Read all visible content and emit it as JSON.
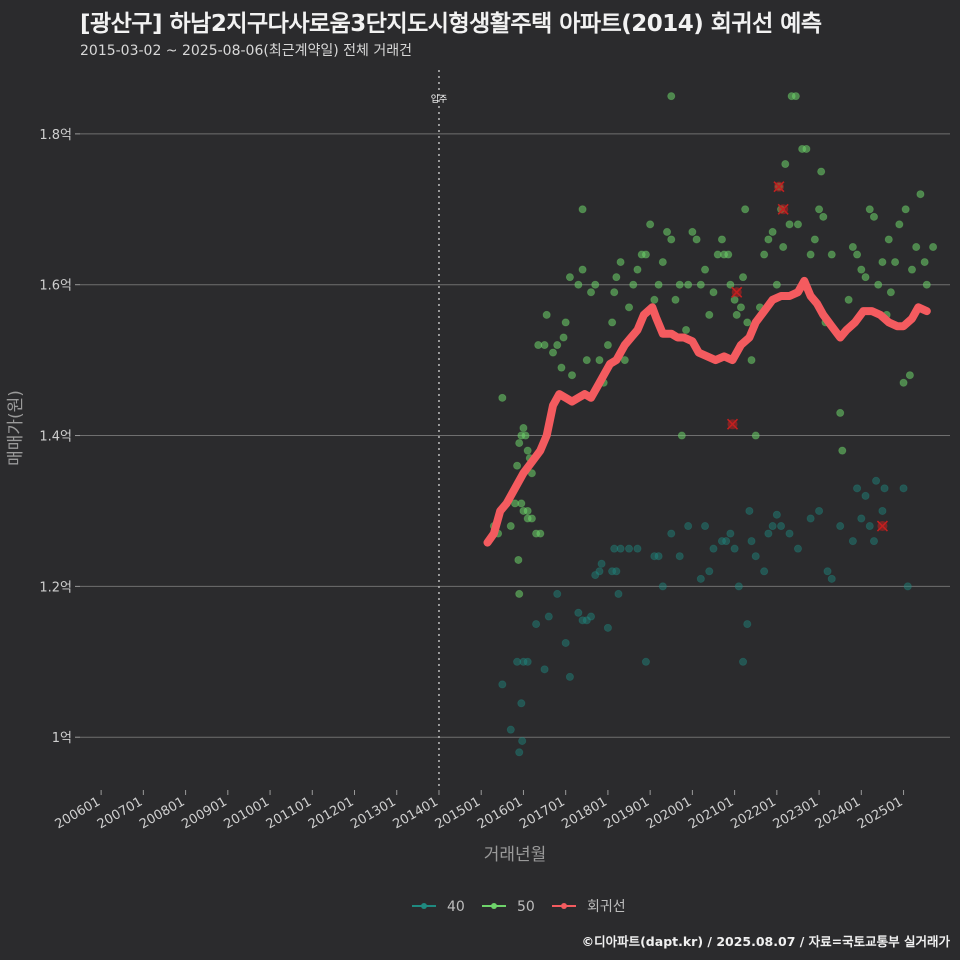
{
  "header": {
    "title": "[광산구] 하남2지구다사로움3단지도시형생활주택 아파트(2014) 회귀선 예측",
    "subtitle": "2015-03-02 ~ 2025-08-06(최근계약일) 전체 거래건"
  },
  "credit": "©디아파트(dapt.kr) / 2025.08.07 / 자료=국토교통부 실거래가",
  "chart_data": {
    "type": "scatter",
    "title": "[광산구] 하남2지구다사로움3단지도시형생활주택 아파트(2014) 회귀선 예측",
    "xlabel": "거래년월",
    "ylabel": "매매가(원)",
    "xlim": [
      2005.5,
      2026.1
    ],
    "ylim": [
      0.93,
      1.89
    ],
    "x_ticks": [
      {
        "v": 2006,
        "label": "200601"
      },
      {
        "v": 2007,
        "label": "200701"
      },
      {
        "v": 2008,
        "label": "200801"
      },
      {
        "v": 2009,
        "label": "200901"
      },
      {
        "v": 2010,
        "label": "201001"
      },
      {
        "v": 2011,
        "label": "201101"
      },
      {
        "v": 2012,
        "label": "201201"
      },
      {
        "v": 2013,
        "label": "201301"
      },
      {
        "v": 2014,
        "label": "201401"
      },
      {
        "v": 2015,
        "label": "201501"
      },
      {
        "v": 2016,
        "label": "201601"
      },
      {
        "v": 2017,
        "label": "201701"
      },
      {
        "v": 2018,
        "label": "201801"
      },
      {
        "v": 2019,
        "label": "201901"
      },
      {
        "v": 2020,
        "label": "202001"
      },
      {
        "v": 2021,
        "label": "202101"
      },
      {
        "v": 2022,
        "label": "202201"
      },
      {
        "v": 2023,
        "label": "202301"
      },
      {
        "v": 2024,
        "label": "202401"
      },
      {
        "v": 2025,
        "label": "202501"
      }
    ],
    "y_ticks": [
      {
        "v": 1.0,
        "label": "1억"
      },
      {
        "v": 1.2,
        "label": "1.2억"
      },
      {
        "v": 1.4,
        "label": "1.4억"
      },
      {
        "v": 1.6,
        "label": "1.6억"
      },
      {
        "v": 1.8,
        "label": "1.8억"
      }
    ],
    "annotation": {
      "x": 2014.0,
      "label": "입주"
    },
    "colors": {
      "s40": "#1f8a80",
      "s50": "#6ed36a",
      "reg": "#f45b5f",
      "cancel": "#c21f1f"
    },
    "series": [
      {
        "name": "40",
        "points": [
          [
            2015.5,
            1.07
          ],
          [
            2015.7,
            1.01
          ],
          [
            2015.9,
            0.98
          ],
          [
            2016.0,
            1.1
          ],
          [
            2015.85,
            1.1
          ],
          [
            2015.95,
            1.045
          ],
          [
            2015.97,
            0.995
          ],
          [
            2016.1,
            1.1
          ],
          [
            2016.3,
            1.15
          ],
          [
            2016.5,
            1.09
          ],
          [
            2016.6,
            1.16
          ],
          [
            2016.8,
            1.19
          ],
          [
            2017.0,
            1.125
          ],
          [
            2017.1,
            1.08
          ],
          [
            2017.3,
            1.165
          ],
          [
            2017.4,
            1.155
          ],
          [
            2017.5,
            1.155
          ],
          [
            2017.6,
            1.16
          ],
          [
            2017.7,
            1.215
          ],
          [
            2017.8,
            1.22
          ],
          [
            2017.85,
            1.23
          ],
          [
            2018.0,
            1.145
          ],
          [
            2018.1,
            1.22
          ],
          [
            2018.15,
            1.25
          ],
          [
            2018.2,
            1.22
          ],
          [
            2018.25,
            1.19
          ],
          [
            2018.3,
            1.25
          ],
          [
            2018.5,
            1.25
          ],
          [
            2018.7,
            1.25
          ],
          [
            2018.9,
            1.1
          ],
          [
            2019.1,
            1.24
          ],
          [
            2019.3,
            1.2
          ],
          [
            2019.5,
            1.27
          ],
          [
            2019.7,
            1.24
          ],
          [
            2019.9,
            1.28
          ],
          [
            2019.2,
            1.24
          ],
          [
            2020.2,
            1.21
          ],
          [
            2020.3,
            1.28
          ],
          [
            2020.4,
            1.22
          ],
          [
            2020.5,
            1.25
          ],
          [
            2020.7,
            1.26
          ],
          [
            2020.8,
            1.26
          ],
          [
            2020.9,
            1.27
          ],
          [
            2021.0,
            1.25
          ],
          [
            2021.1,
            1.2
          ],
          [
            2021.2,
            1.1
          ],
          [
            2021.3,
            1.15
          ],
          [
            2021.4,
            1.26
          ],
          [
            2021.35,
            1.3
          ],
          [
            2021.5,
            1.24
          ],
          [
            2021.7,
            1.22
          ],
          [
            2021.8,
            1.27
          ],
          [
            2021.9,
            1.28
          ],
          [
            2022.0,
            1.295
          ],
          [
            2022.1,
            1.28
          ],
          [
            2022.3,
            1.27
          ],
          [
            2022.5,
            1.25
          ],
          [
            2022.8,
            1.29
          ],
          [
            2023.0,
            1.3
          ],
          [
            2023.2,
            1.22
          ],
          [
            2023.3,
            1.21
          ],
          [
            2023.5,
            1.28
          ],
          [
            2023.8,
            1.26
          ],
          [
            2023.9,
            1.33
          ],
          [
            2024.0,
            1.29
          ],
          [
            2024.1,
            1.32
          ],
          [
            2024.2,
            1.28
          ],
          [
            2024.3,
            1.26
          ],
          [
            2024.35,
            1.34
          ],
          [
            2024.5,
            1.3
          ],
          [
            2024.55,
            1.33
          ],
          [
            2025.0,
            1.33
          ],
          [
            2025.1,
            1.2
          ]
        ]
      },
      {
        "name": "50",
        "points": [
          [
            2015.3,
            1.28
          ],
          [
            2015.4,
            1.27
          ],
          [
            2015.5,
            1.45
          ],
          [
            2015.7,
            1.28
          ],
          [
            2015.8,
            1.31
          ],
          [
            2015.85,
            1.36
          ],
          [
            2015.9,
            1.39
          ],
          [
            2015.95,
            1.4
          ],
          [
            2016.0,
            1.41
          ],
          [
            2016.05,
            1.4
          ],
          [
            2016.1,
            1.38
          ],
          [
            2016.15,
            1.37
          ],
          [
            2016.2,
            1.29
          ],
          [
            2015.9,
            1.19
          ],
          [
            2015.88,
            1.235
          ],
          [
            2016.0,
            1.3
          ],
          [
            2016.1,
            1.29
          ],
          [
            2016.3,
            1.27
          ],
          [
            2016.35,
            1.52
          ],
          [
            2016.4,
            1.27
          ],
          [
            2016.5,
            1.52
          ],
          [
            2016.55,
            1.56
          ],
          [
            2016.7,
            1.51
          ],
          [
            2016.8,
            1.52
          ],
          [
            2016.9,
            1.49
          ],
          [
            2016.95,
            1.53
          ],
          [
            2017.0,
            1.55
          ],
          [
            2017.1,
            1.61
          ],
          [
            2017.15,
            1.48
          ],
          [
            2017.3,
            1.6
          ],
          [
            2017.4,
            1.62
          ],
          [
            2017.5,
            1.5
          ],
          [
            2017.6,
            1.59
          ],
          [
            2017.7,
            1.6
          ],
          [
            2017.8,
            1.5
          ],
          [
            2017.9,
            1.47
          ],
          [
            2018.0,
            1.52
          ],
          [
            2018.1,
            1.55
          ],
          [
            2018.15,
            1.59
          ],
          [
            2018.2,
            1.61
          ],
          [
            2018.3,
            1.63
          ],
          [
            2018.4,
            1.5
          ],
          [
            2018.5,
            1.57
          ],
          [
            2018.6,
            1.6
          ],
          [
            2018.7,
            1.62
          ],
          [
            2018.8,
            1.64
          ],
          [
            2018.9,
            1.64
          ],
          [
            2019.0,
            1.68
          ],
          [
            2019.1,
            1.58
          ],
          [
            2019.2,
            1.6
          ],
          [
            2019.3,
            1.63
          ],
          [
            2019.4,
            1.67
          ],
          [
            2019.5,
            1.66
          ],
          [
            2019.6,
            1.58
          ],
          [
            2019.7,
            1.6
          ],
          [
            2019.75,
            1.4
          ],
          [
            2019.85,
            1.54
          ],
          [
            2019.9,
            1.6
          ],
          [
            2020.0,
            1.67
          ],
          [
            2020.1,
            1.66
          ],
          [
            2020.2,
            1.6
          ],
          [
            2020.3,
            1.62
          ],
          [
            2020.4,
            1.56
          ],
          [
            2020.5,
            1.59
          ],
          [
            2020.6,
            1.64
          ],
          [
            2020.7,
            1.66
          ],
          [
            2020.75,
            1.64
          ],
          [
            2020.85,
            1.64
          ],
          [
            2020.9,
            1.6
          ],
          [
            2021.0,
            1.58
          ],
          [
            2021.05,
            1.56
          ],
          [
            2021.15,
            1.57
          ],
          [
            2021.2,
            1.61
          ],
          [
            2021.25,
            1.7
          ],
          [
            2021.3,
            1.55
          ],
          [
            2021.4,
            1.5
          ],
          [
            2021.5,
            1.4
          ],
          [
            2021.6,
            1.57
          ],
          [
            2021.7,
            1.64
          ],
          [
            2021.8,
            1.66
          ],
          [
            2021.9,
            1.67
          ],
          [
            2022.0,
            1.6
          ],
          [
            2022.05,
            1.73
          ],
          [
            2022.1,
            1.7
          ],
          [
            2022.15,
            1.65
          ],
          [
            2022.2,
            1.76
          ],
          [
            2022.3,
            1.68
          ],
          [
            2022.35,
            1.85
          ],
          [
            2022.45,
            1.85
          ],
          [
            2022.5,
            1.68
          ],
          [
            2022.6,
            1.78
          ],
          [
            2022.7,
            1.78
          ],
          [
            2022.8,
            1.64
          ],
          [
            2022.9,
            1.66
          ],
          [
            2023.0,
            1.7
          ],
          [
            2023.05,
            1.75
          ],
          [
            2023.1,
            1.69
          ],
          [
            2023.15,
            1.55
          ],
          [
            2023.3,
            1.64
          ],
          [
            2023.5,
            1.43
          ],
          [
            2023.55,
            1.38
          ],
          [
            2023.7,
            1.58
          ],
          [
            2023.8,
            1.65
          ],
          [
            2023.9,
            1.64
          ],
          [
            2024.0,
            1.62
          ],
          [
            2024.1,
            1.61
          ],
          [
            2024.2,
            1.7
          ],
          [
            2024.3,
            1.69
          ],
          [
            2024.4,
            1.6
          ],
          [
            2024.5,
            1.63
          ],
          [
            2024.6,
            1.56
          ],
          [
            2024.65,
            1.66
          ],
          [
            2024.7,
            1.59
          ],
          [
            2024.8,
            1.63
          ],
          [
            2024.9,
            1.68
          ],
          [
            2025.0,
            1.47
          ],
          [
            2025.05,
            1.7
          ],
          [
            2025.15,
            1.48
          ],
          [
            2025.2,
            1.62
          ],
          [
            2025.3,
            1.65
          ],
          [
            2025.4,
            1.72
          ],
          [
            2025.5,
            1.63
          ],
          [
            2025.55,
            1.6
          ],
          [
            2025.7,
            1.65
          ],
          [
            2019.5,
            1.85
          ],
          [
            2017.4,
            1.7
          ],
          [
            2016.2,
            1.35
          ],
          [
            2016.1,
            1.3
          ],
          [
            2015.95,
            1.31
          ]
        ]
      }
    ],
    "cancelled": [
      [
        2020.95,
        1.415
      ],
      [
        2021.05,
        1.59
      ],
      [
        2022.05,
        1.73
      ],
      [
        2022.15,
        1.7
      ],
      [
        2024.5,
        1.28
      ]
    ],
    "regression": {
      "name": "회귀선",
      "points": [
        [
          2015.15,
          1.258
        ],
        [
          2015.3,
          1.27
        ],
        [
          2015.45,
          1.3
        ],
        [
          2015.6,
          1.31
        ],
        [
          2015.8,
          1.33
        ],
        [
          2016.0,
          1.35
        ],
        [
          2016.2,
          1.365
        ],
        [
          2016.4,
          1.38
        ],
        [
          2016.55,
          1.4
        ],
        [
          2016.7,
          1.44
        ],
        [
          2016.85,
          1.455
        ],
        [
          2017.0,
          1.45
        ],
        [
          2017.15,
          1.445
        ],
        [
          2017.3,
          1.45
        ],
        [
          2017.45,
          1.455
        ],
        [
          2017.6,
          1.45
        ],
        [
          2017.75,
          1.465
        ],
        [
          2017.9,
          1.48
        ],
        [
          2018.05,
          1.495
        ],
        [
          2018.2,
          1.5
        ],
        [
          2018.4,
          1.52
        ],
        [
          2018.55,
          1.53
        ],
        [
          2018.7,
          1.54
        ],
        [
          2018.85,
          1.56
        ],
        [
          2018.95,
          1.565
        ],
        [
          2019.05,
          1.57
        ],
        [
          2019.15,
          1.555
        ],
        [
          2019.3,
          1.535
        ],
        [
          2019.5,
          1.535
        ],
        [
          2019.65,
          1.53
        ],
        [
          2019.8,
          1.53
        ],
        [
          2020.0,
          1.525
        ],
        [
          2020.15,
          1.51
        ],
        [
          2020.35,
          1.505
        ],
        [
          2020.55,
          1.5
        ],
        [
          2020.75,
          1.505
        ],
        [
          2020.95,
          1.5
        ],
        [
          2021.15,
          1.52
        ],
        [
          2021.35,
          1.53
        ],
        [
          2021.5,
          1.55
        ],
        [
          2021.7,
          1.565
        ],
        [
          2021.9,
          1.58
        ],
        [
          2022.1,
          1.585
        ],
        [
          2022.3,
          1.585
        ],
        [
          2022.5,
          1.59
        ],
        [
          2022.65,
          1.605
        ],
        [
          2022.8,
          1.585
        ],
        [
          2022.95,
          1.575
        ],
        [
          2023.1,
          1.56
        ],
        [
          2023.3,
          1.545
        ],
        [
          2023.5,
          1.53
        ],
        [
          2023.65,
          1.54
        ],
        [
          2023.85,
          1.55
        ],
        [
          2024.05,
          1.565
        ],
        [
          2024.25,
          1.565
        ],
        [
          2024.45,
          1.56
        ],
        [
          2024.65,
          1.55
        ],
        [
          2024.85,
          1.545
        ],
        [
          2025.0,
          1.545
        ],
        [
          2025.2,
          1.555
        ],
        [
          2025.35,
          1.57
        ],
        [
          2025.55,
          1.565
        ]
      ]
    },
    "legend": [
      {
        "label": "40",
        "color": "#1f8a80"
      },
      {
        "label": "50",
        "color": "#6ed36a"
      },
      {
        "label": "회귀선",
        "color": "#f45b5f"
      }
    ]
  }
}
